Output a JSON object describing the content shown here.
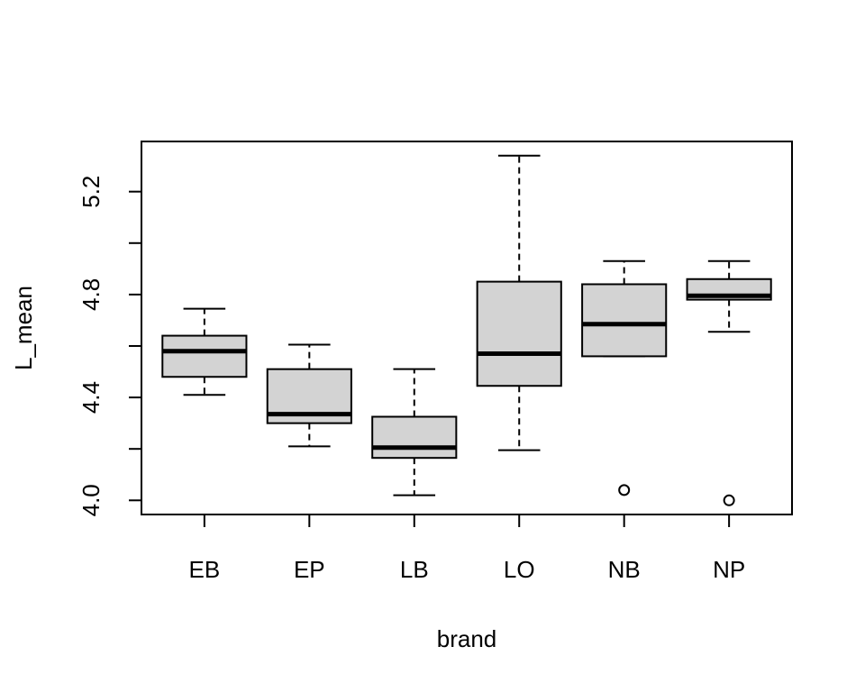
{
  "chart_data": {
    "type": "boxplot",
    "title": "",
    "xlabel": "brand",
    "ylabel": "L_mean",
    "ylim": [
      3.945,
      5.395
    ],
    "y_ticks": [
      4.0,
      4.4,
      4.8,
      5.2
    ],
    "y_tick_labels": [
      "4.0",
      "4.4",
      "4.8",
      "5.2"
    ],
    "y_minor_ticks": [
      4.2,
      4.6,
      5.0
    ],
    "grid": false,
    "colors": {
      "box_fill": "#d3d3d3",
      "stroke": "#000000"
    },
    "categories": [
      "EB",
      "EP",
      "LB",
      "LO",
      "NB",
      "NP"
    ],
    "boxes": [
      {
        "label": "EB",
        "whisker_low": 4.41,
        "q1": 4.48,
        "median": 4.58,
        "q3": 4.64,
        "whisker_high": 4.745,
        "outliers": []
      },
      {
        "label": "EP",
        "whisker_low": 4.21,
        "q1": 4.3,
        "median": 4.335,
        "q3": 4.51,
        "whisker_high": 4.605,
        "outliers": []
      },
      {
        "label": "LB",
        "whisker_low": 4.02,
        "q1": 4.165,
        "median": 4.205,
        "q3": 4.325,
        "whisker_high": 4.51,
        "outliers": []
      },
      {
        "label": "LO",
        "whisker_low": 4.195,
        "q1": 4.445,
        "median": 4.57,
        "q3": 4.85,
        "whisker_high": 5.34,
        "outliers": []
      },
      {
        "label": "NB",
        "whisker_low": 4.56,
        "q1": 4.56,
        "median": 4.685,
        "q3": 4.84,
        "whisker_high": 4.93,
        "outliers": [
          4.04
        ]
      },
      {
        "label": "NP",
        "whisker_low": 4.655,
        "q1": 4.78,
        "median": 4.795,
        "q3": 4.86,
        "whisker_high": 4.93,
        "outliers": [
          4.0
        ]
      }
    ]
  }
}
